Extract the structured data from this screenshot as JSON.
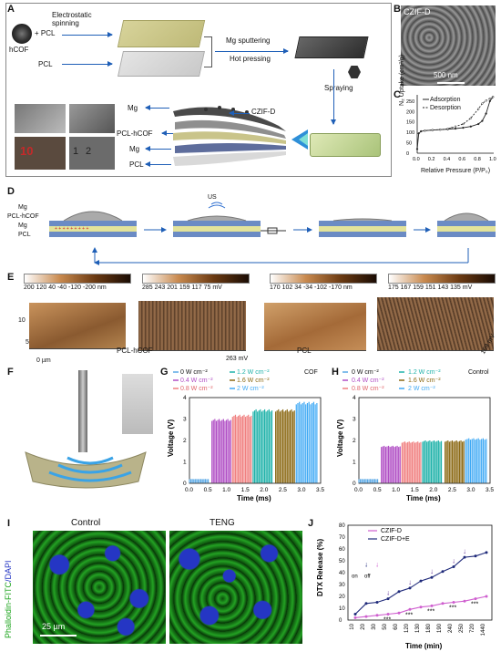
{
  "panels": {
    "A": "A",
    "B": "B",
    "C": "C",
    "D": "D",
    "E": "E",
    "F": "F",
    "G": "G",
    "H": "H",
    "I": "I",
    "J": "J"
  },
  "panelA": {
    "hcof": "hCOF",
    "plus_pcl": "+ PCL",
    "electrospinning": "Electrostatic spinning",
    "pcl": "PCL",
    "mg_sputtering": "Mg sputtering",
    "hot_pressing": "Hot pressing",
    "spraying": "Spraying",
    "layers": [
      "Mg",
      "PCL-hCOF",
      "Mg",
      "PCL"
    ],
    "czifd": "CZIF-D",
    "ruler_10": "10",
    "ruler_1": "1",
    "ruler_2": "2"
  },
  "panelB": {
    "title": "CZIF-D",
    "scale": "500 nm"
  },
  "panelC": {
    "legend": [
      "Adsorption",
      "Desorption"
    ],
    "ylabel": "N₂ Uptake (cm³/g)",
    "xlabel": "Relative Pressure (P/P₀)",
    "xticks": [
      "0.0",
      "0.2",
      "0.4",
      "0.6",
      "0.8",
      "1.0"
    ],
    "yticks": [
      "0",
      "50",
      "100",
      "150",
      "200",
      "250"
    ]
  },
  "panelD": {
    "layers": [
      "Mg",
      "PCL-hCOF",
      "Mg",
      "PCL"
    ],
    "us": "US"
  },
  "panelE": {
    "bars": [
      {
        "ticks": "200 120 40 -40 -120 -200",
        "unit": "nm"
      },
      {
        "ticks": "285 243 201 159 117 75",
        "unit": "mV"
      },
      {
        "ticks": "170 102 34 -34 -102 -170",
        "unit": "nm"
      },
      {
        "ticks": "175 167 159 151 143 135",
        "unit": "mV"
      }
    ],
    "axis_10": "10",
    "axis_5": "5",
    "axis_0": "0 µm",
    "label_pcl_hcof": "PCL-hCOF",
    "label_263": "263 mV",
    "label_pcl": "PCL",
    "label_169": "169 mV"
  },
  "panelG": {
    "legend": [
      "0 W cm⁻²",
      "0.4 W cm⁻²",
      "0.8 W cm⁻²",
      "1.2 W cm⁻²",
      "1.6 W cm⁻²",
      "2 W cm⁻²"
    ],
    "tag": "COF"
  },
  "panelH": {
    "legend": [
      "0 W cm⁻²",
      "0.4 W cm⁻²",
      "0.8 W cm⁻²",
      "1.2 W cm⁻²",
      "1.6 W cm⁻²",
      "2 W cm⁻²"
    ],
    "tag": "Control"
  },
  "panelI": {
    "control": "Control",
    "teng": "TENG",
    "stain_a": "Phalloidin-FITC",
    "stain_b": "/DAPI",
    "scale": "25 µm"
  },
  "panelJ": {
    "on": "on",
    "off": "off",
    "stars": "***"
  },
  "colors": {
    "blue": "#1f5fb7",
    "g0": "#5aa9e6",
    "g1": "#b14fc5",
    "g2": "#f08080",
    "g3": "#20b2aa",
    "g4": "#8b6914",
    "g5": "#3fa9f5"
  },
  "chart_data": [
    {
      "type": "line",
      "title": "",
      "xlabel": "Relative Pressure (P/P₀)",
      "ylabel": "N₂ Uptake (cm³/g)",
      "xlim": [
        0,
        1.0
      ],
      "ylim": [
        0,
        280
      ],
      "series": [
        {
          "name": "Adsorption",
          "x": [
            0.0,
            0.02,
            0.05,
            0.1,
            0.2,
            0.3,
            0.4,
            0.5,
            0.6,
            0.7,
            0.8,
            0.85,
            0.9,
            0.95,
            0.99
          ],
          "y": [
            20,
            95,
            105,
            108,
            111,
            113,
            115,
            118,
            122,
            128,
            140,
            155,
            190,
            250,
            270
          ]
        },
        {
          "name": "Desorption",
          "x": [
            0.99,
            0.95,
            0.9,
            0.85,
            0.8,
            0.7,
            0.6,
            0.5,
            0.45,
            0.4,
            0.3,
            0.2,
            0.1
          ],
          "y": [
            270,
            262,
            252,
            238,
            212,
            168,
            140,
            128,
            122,
            117,
            113,
            111,
            108
          ]
        }
      ]
    },
    {
      "type": "bar",
      "title": "",
      "xlabel": "Time (ms)",
      "ylabel": "Voltage (V)",
      "xlim": [
        0,
        3.5
      ],
      "ylim": [
        0,
        4.0
      ],
      "xticks": [
        "0.0",
        "0.5",
        "1.0",
        "1.5",
        "2.0",
        "2.5",
        "3.0",
        "3.5"
      ],
      "yticks": [
        "0",
        "1",
        "2",
        "3",
        "4"
      ],
      "series": [
        {
          "name": "0 W cm⁻²",
          "x_range": [
            0.0,
            0.5
          ],
          "amplitude": 0.2
        },
        {
          "name": "0.4 W cm⁻²",
          "x_range": [
            0.6,
            1.1
          ],
          "amplitude": 3.0
        },
        {
          "name": "0.8 W cm⁻²",
          "x_range": [
            1.15,
            1.65
          ],
          "amplitude": 3.2
        },
        {
          "name": "1.2 W cm⁻²",
          "x_range": [
            1.7,
            2.2
          ],
          "amplitude": 3.45
        },
        {
          "name": "1.6 W cm⁻²",
          "x_range": [
            2.3,
            2.8
          ],
          "amplitude": 3.45
        },
        {
          "name": "2 W cm⁻²",
          "x_range": [
            2.85,
            3.4
          ],
          "amplitude": 3.8
        }
      ]
    },
    {
      "type": "bar",
      "title": "",
      "xlabel": "Time (ms)",
      "ylabel": "Voltage (V)",
      "xlim": [
        0,
        3.5
      ],
      "ylim": [
        0,
        4.0
      ],
      "xticks": [
        "0.0",
        "0.5",
        "1.0",
        "1.5",
        "2.0",
        "2.5",
        "3.0",
        "3.5"
      ],
      "yticks": [
        "0",
        "1",
        "2",
        "3",
        "4"
      ],
      "series": [
        {
          "name": "0 W cm⁻²",
          "x_range": [
            0.0,
            0.5
          ],
          "amplitude": 0.2
        },
        {
          "name": "0.4 W cm⁻²",
          "x_range": [
            0.6,
            1.1
          ],
          "amplitude": 1.75
        },
        {
          "name": "0.8 W cm⁻²",
          "x_range": [
            1.15,
            1.65
          ],
          "amplitude": 1.95
        },
        {
          "name": "1.2 W cm⁻²",
          "x_range": [
            1.7,
            2.2
          ],
          "amplitude": 2.0
        },
        {
          "name": "1.6 W cm⁻²",
          "x_range": [
            2.3,
            2.8
          ],
          "amplitude": 2.0
        },
        {
          "name": "2 W cm⁻²",
          "x_range": [
            2.85,
            3.4
          ],
          "amplitude": 2.1
        }
      ]
    },
    {
      "type": "line",
      "title": "",
      "xlabel": "Time (min)",
      "ylabel": "DTX Release (%)",
      "ylim": [
        0,
        80
      ],
      "categories": [
        "10",
        "20",
        "30",
        "50",
        "60",
        "120",
        "130",
        "180",
        "190",
        "240",
        "250",
        "720",
        "1440"
      ],
      "yticks": [
        "0",
        "10",
        "20",
        "30",
        "40",
        "50",
        "60",
        "70",
        "80"
      ],
      "series": [
        {
          "name": "CZIF-D",
          "values": [
            2,
            3,
            4,
            5,
            6,
            9,
            11,
            12,
            14,
            15,
            16,
            18,
            20
          ]
        },
        {
          "name": "CZIF-D+E",
          "values": [
            5,
            14,
            15,
            18,
            24,
            27,
            33,
            36,
            41,
            45,
            53,
            54,
            57
          ]
        }
      ]
    }
  ]
}
